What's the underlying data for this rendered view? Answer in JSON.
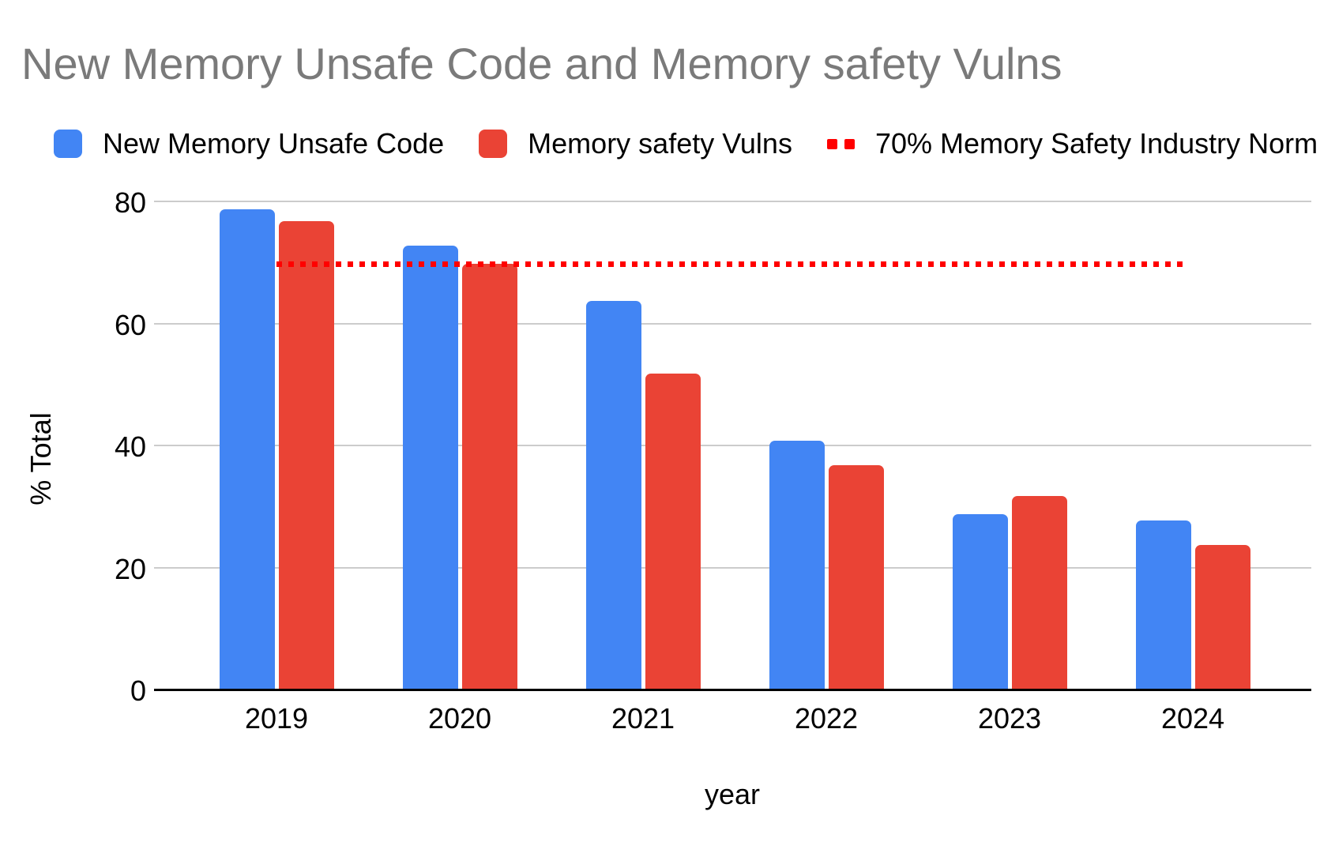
{
  "title": "New Memory Unsafe Code and Memory safety Vulns",
  "chart_data": {
    "type": "bar",
    "title": "New Memory Unsafe Code and Memory safety Vulns",
    "categories": [
      "2019",
      "2020",
      "2021",
      "2022",
      "2023",
      "2024"
    ],
    "series": [
      {
        "name": "New Memory Unsafe Code",
        "color": "#4285F4",
        "values": [
          79,
          73,
          64,
          41,
          29,
          28
        ]
      },
      {
        "name": "Memory safety Vulns",
        "color": "#EA4335",
        "values": [
          77,
          70,
          52,
          37,
          32,
          24
        ]
      }
    ],
    "reference_line": {
      "label": "70% Memory Safety Industry Norm",
      "value": 70,
      "color": "#FF0000",
      "style": "dotted"
    },
    "xlabel": "year",
    "ylabel": "% Total",
    "ylim": [
      0,
      80
    ],
    "yticks": [
      0,
      20,
      40,
      60,
      80
    ],
    "grid": true,
    "legend_position": "top",
    "styles": {
      "title_color": "#7a7a7a",
      "tick_label_color": "#000000",
      "gridline_color": "#cccccc",
      "axis_color": "#000000",
      "background": "#ffffff"
    }
  }
}
